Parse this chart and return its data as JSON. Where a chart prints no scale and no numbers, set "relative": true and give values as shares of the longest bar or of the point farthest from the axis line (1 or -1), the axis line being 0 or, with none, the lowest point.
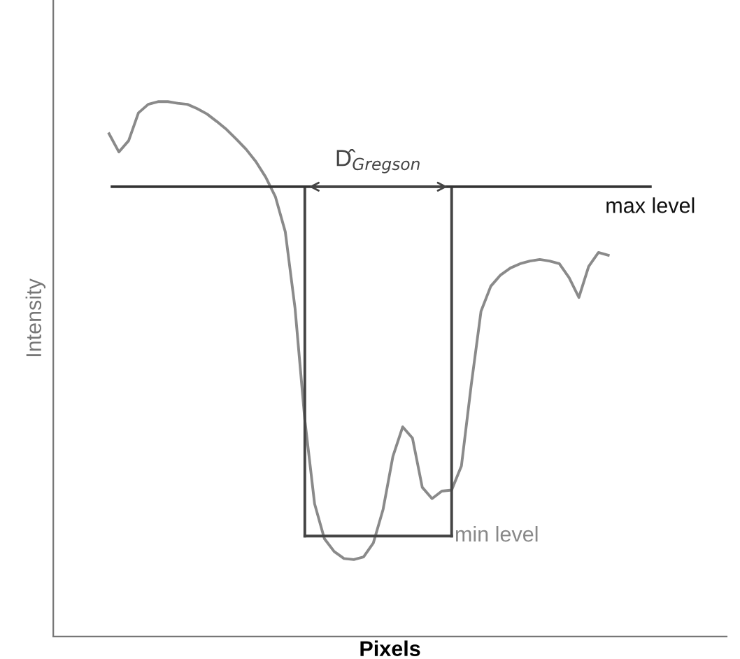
{
  "chart_data": {
    "type": "line",
    "relative": true,
    "xlabel": "Pixels",
    "ylabel": "Intensity",
    "tick_labels": false,
    "categories": [
      null,
      null,
      null,
      null,
      null,
      null,
      null,
      null,
      null,
      null,
      null,
      null,
      null,
      null,
      null,
      null,
      null,
      null,
      null,
      null,
      null,
      null,
      null,
      null,
      null,
      null,
      null,
      null,
      null,
      null,
      null,
      null,
      null,
      null,
      null,
      null,
      null,
      null,
      null,
      null,
      null,
      null,
      null,
      null,
      null,
      null,
      null,
      null,
      null,
      null,
      null,
      null
    ],
    "series": [
      {
        "color": "#8a8a8a",
        "values": [
          0.94,
          0.906,
          0.927,
          0.979,
          0.995,
          1.0,
          1.0,
          0.997,
          0.995,
          0.987,
          0.977,
          0.963,
          0.948,
          0.93,
          0.911,
          0.888,
          0.859,
          0.822,
          0.757,
          0.614,
          0.405,
          0.248,
          0.183,
          0.159,
          0.146,
          0.144,
          0.149,
          0.175,
          0.238,
          0.337,
          0.392,
          0.371,
          0.279,
          0.258,
          0.272,
          0.274,
          0.319,
          0.47,
          0.608,
          0.655,
          0.676,
          0.689,
          0.697,
          0.702,
          0.705,
          0.702,
          0.697,
          0.671,
          0.634,
          0.692,
          0.718,
          0.713
        ]
      }
    ],
    "ref_lines": [
      {
        "axis": "y",
        "value": 0.841,
        "label": "max level",
        "color": "#333333"
      },
      {
        "axis": "y",
        "value": 0.188,
        "label": "min level",
        "color": "#444444"
      }
    ],
    "annotations": [
      "D̂$_{Gregson}$"
    ]
  }
}
